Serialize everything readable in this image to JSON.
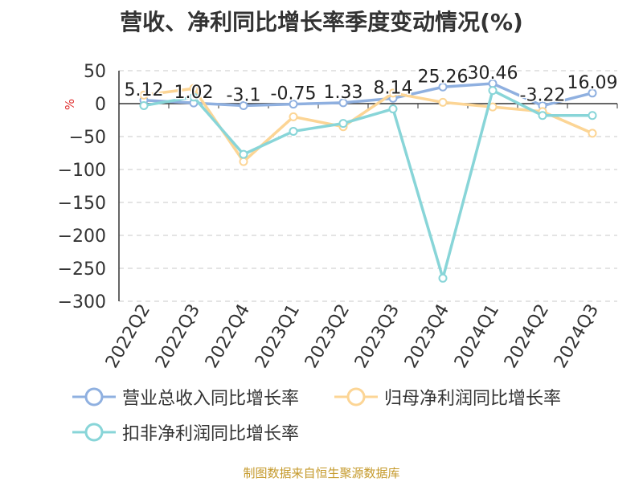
{
  "title": "营收、净利同比增长率季度变动情况(%)",
  "source": "制图数据来自恒生聚源数据库",
  "chart_data": {
    "type": "line",
    "ylabel": "%",
    "ylim": [
      -300,
      50
    ],
    "yticks": [
      50,
      0,
      -50,
      -100,
      -150,
      -200,
      -250,
      -300
    ],
    "grid": true,
    "legend_position": "bottom",
    "categories": [
      "2022Q2",
      "2022Q3",
      "2022Q4",
      "2023Q1",
      "2023Q2",
      "2023Q3",
      "2023Q4",
      "2024Q1",
      "2024Q2",
      "2024Q3"
    ],
    "series": [
      {
        "name": "营业总收入同比增长率",
        "color": "#8fb0e0",
        "values": [
          5.12,
          1.02,
          -3.1,
          -0.75,
          1.33,
          8.14,
          25.26,
          30.46,
          -3.22,
          16.09
        ],
        "labels": [
          "5.12",
          "1.02",
          "-3.1",
          "-0.75",
          "1.33",
          "8.14",
          "25.26",
          "30.46",
          "-3.22",
          "16.09"
        ]
      },
      {
        "name": "归母净利润同比增长率",
        "color": "#fcd595",
        "values": [
          13,
          23,
          -88,
          -20,
          -35,
          16,
          2,
          -5,
          -12,
          -45
        ]
      },
      {
        "name": "扣非净利润同比增长率",
        "color": "#88d5d8",
        "values": [
          -3,
          10,
          -77,
          -42,
          -30,
          -8,
          -265,
          20,
          -18,
          -18
        ]
      }
    ]
  }
}
